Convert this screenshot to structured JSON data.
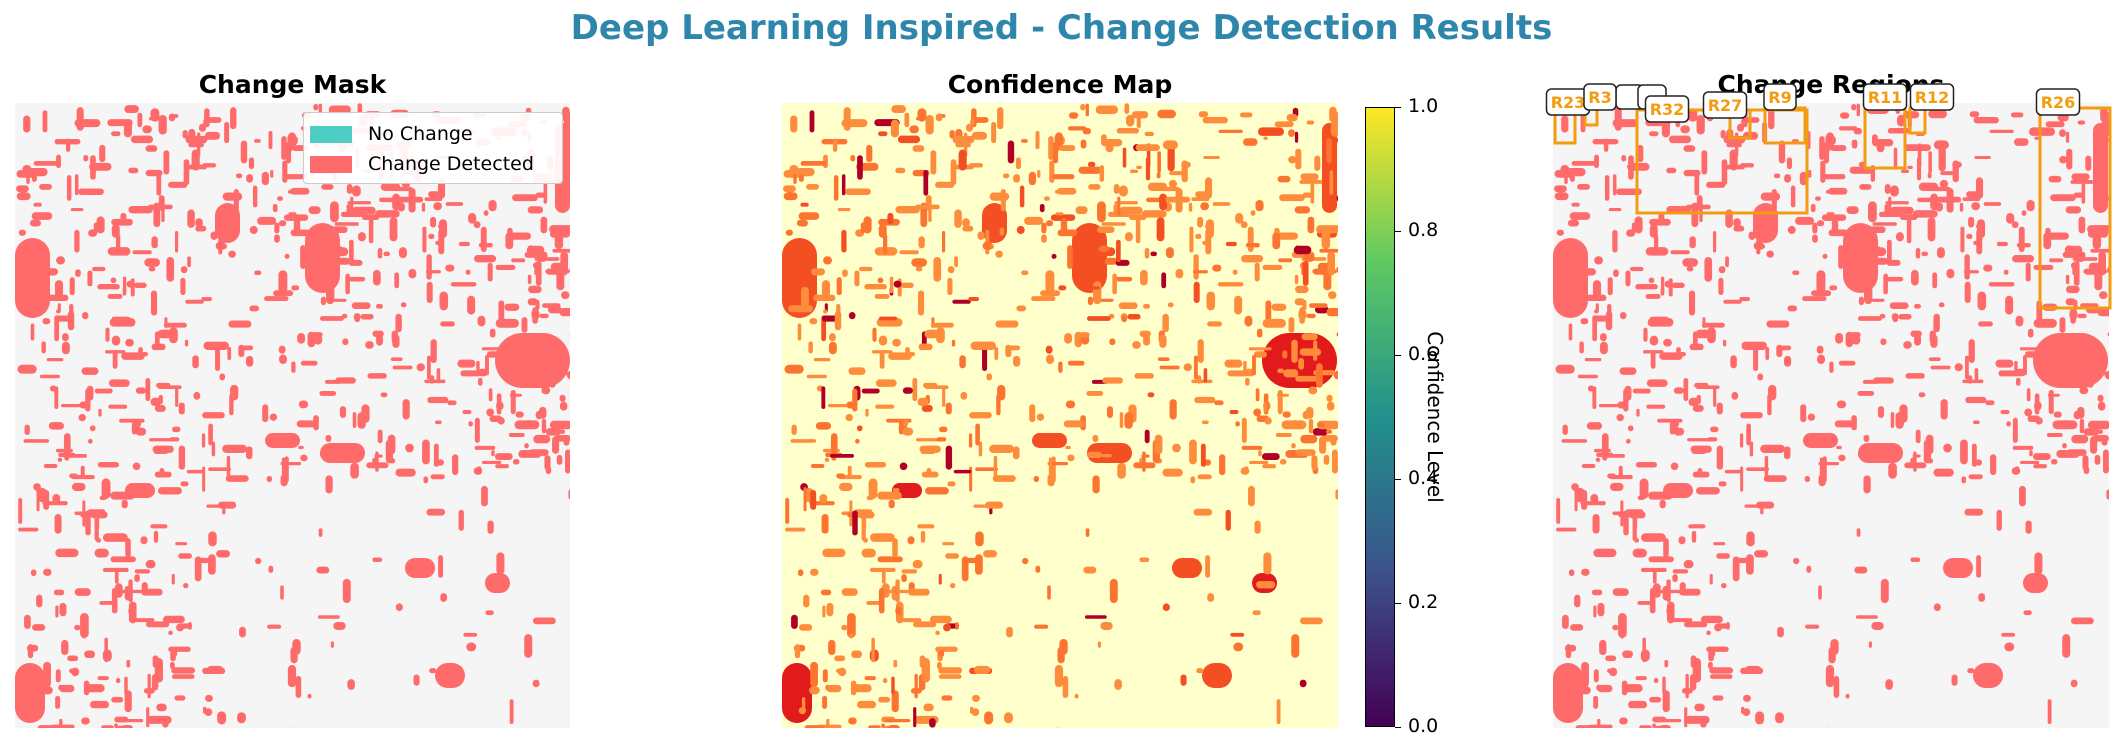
{
  "suptitle": "Deep Learning Inspired - Change Detection Results",
  "colors": {
    "suptitle": "#2e86ab",
    "no_change": "#4ecdc4",
    "change": "#ff6b6b",
    "background": "#f5f5f5",
    "confidence_low": "#ffffcc",
    "box": "#f39c12"
  },
  "chart_data": [
    {
      "type": "heatmap",
      "title": "Change Mask",
      "legend": {
        "placement": "top-right",
        "entries": [
          {
            "label": "No Change",
            "color": "#4ecdc4"
          },
          {
            "label": "Change Detected",
            "color": "#ff6b6b"
          }
        ]
      }
    },
    {
      "type": "heatmap",
      "title": "Confidence Map",
      "colorbar": {
        "label": "Confidence Level",
        "range": [
          0.0,
          1.0
        ],
        "ticks": [
          "0.0",
          "0.2",
          "0.4",
          "0.6",
          "0.8",
          "1.0"
        ]
      }
    },
    {
      "type": "heatmap",
      "title": "Change Regions",
      "regions": [
        "R23",
        "R3",
        "R32",
        "R27",
        "R9",
        "R11",
        "R12",
        "R26"
      ]
    }
  ]
}
